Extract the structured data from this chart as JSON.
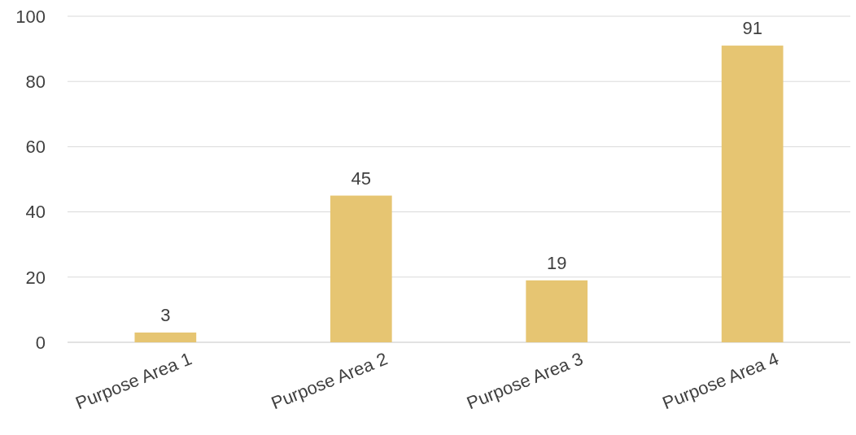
{
  "chart_data": {
    "type": "bar",
    "categories": [
      "Purpose Area 1",
      "Purpose Area 2",
      "Purpose Area 3",
      "Purpose Area 4"
    ],
    "values": [
      3,
      45,
      19,
      91
    ],
    "color": "#e6c572",
    "ylim": [
      0,
      100
    ],
    "yticks": [
      0,
      20,
      40,
      60,
      80,
      100
    ],
    "grid": "y",
    "data_labels": true
  }
}
